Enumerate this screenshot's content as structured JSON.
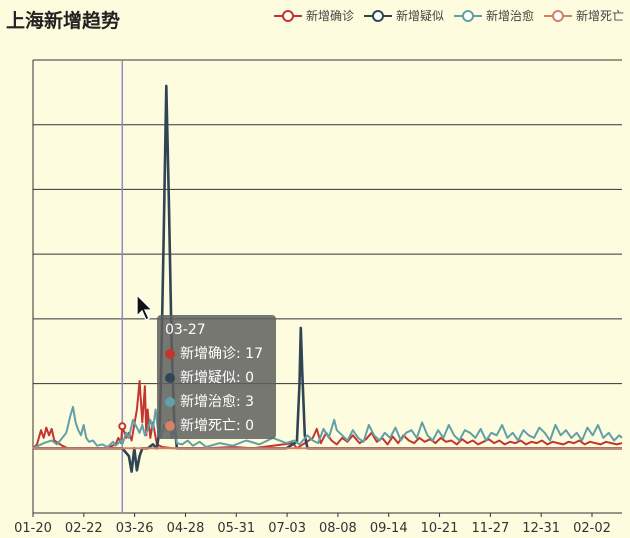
{
  "title": "上海新增趋势",
  "legend": [
    {
      "name": "新增确诊",
      "color": "#c23531"
    },
    {
      "name": "新增疑似",
      "color": "#2f4554"
    },
    {
      "name": "新增治愈",
      "color": "#61a0a8"
    },
    {
      "name": "新增死亡",
      "color": "#d48265"
    }
  ],
  "tooltip": {
    "date": "03-27",
    "rows": [
      {
        "label": "新增确诊: 17",
        "color": "#c23531"
      },
      {
        "label": "新增疑似: 0",
        "color": "#2f4554"
      },
      {
        "label": "新增治愈: 3",
        "color": "#61a0a8"
      },
      {
        "label": "新增死亡: 0",
        "color": "#d48265"
      }
    ]
  },
  "chart_data": {
    "type": "line",
    "title": "上海新增趋势",
    "x_ticks": [
      "01-20",
      "02-22",
      "03-26",
      "04-28",
      "05-31",
      "07-03",
      "08-08",
      "09-14",
      "10-21",
      "11-27",
      "12-31",
      "02-02"
    ],
    "ylim": [
      -50,
      300
    ],
    "grid": true,
    "legend_position": "top-right",
    "highlighted_x": "03-27",
    "series": [
      {
        "name": "新增确诊",
        "color": "#c23531",
        "points": [
          [
            0,
            0
          ],
          [
            3,
            3
          ],
          [
            6,
            14
          ],
          [
            8,
            8
          ],
          [
            10,
            16
          ],
          [
            12,
            10
          ],
          [
            14,
            15
          ],
          [
            16,
            6
          ],
          [
            19,
            4
          ],
          [
            22,
            2
          ],
          [
            26,
            0
          ],
          [
            35,
            0
          ],
          [
            55,
            0
          ],
          [
            62,
            3
          ],
          [
            64,
            8
          ],
          [
            66,
            4
          ],
          [
            67,
            17
          ],
          [
            70,
            8
          ],
          [
            72,
            12
          ],
          [
            74,
            6
          ],
          [
            78,
            30
          ],
          [
            80,
            52
          ],
          [
            82,
            20
          ],
          [
            84,
            48
          ],
          [
            85,
            10
          ],
          [
            86,
            30
          ],
          [
            88,
            8
          ],
          [
            90,
            20
          ],
          [
            93,
            3
          ],
          [
            97,
            1
          ],
          [
            105,
            0
          ],
          [
            130,
            0
          ],
          [
            150,
            1
          ],
          [
            165,
            0
          ],
          [
            180,
            2
          ],
          [
            195,
            4
          ],
          [
            198,
            0
          ],
          [
            210,
            8
          ],
          [
            213,
            15
          ],
          [
            216,
            4
          ],
          [
            220,
            12
          ],
          [
            224,
            6
          ],
          [
            228,
            3
          ],
          [
            232,
            8
          ],
          [
            236,
            5
          ],
          [
            240,
            10
          ],
          [
            245,
            4
          ],
          [
            250,
            7
          ],
          [
            254,
            12
          ],
          [
            258,
            5
          ],
          [
            262,
            8
          ],
          [
            266,
            3
          ],
          [
            270,
            9
          ],
          [
            274,
            4
          ],
          [
            278,
            10
          ],
          [
            282,
            6
          ],
          [
            286,
            4
          ],
          [
            290,
            8
          ],
          [
            294,
            5
          ],
          [
            298,
            7
          ],
          [
            302,
            4
          ],
          [
            306,
            8
          ],
          [
            310,
            5
          ],
          [
            314,
            6
          ],
          [
            318,
            3
          ],
          [
            322,
            7
          ],
          [
            326,
            4
          ],
          [
            330,
            6
          ],
          [
            334,
            3
          ],
          [
            338,
            5
          ],
          [
            342,
            7
          ],
          [
            346,
            4
          ],
          [
            350,
            6
          ],
          [
            354,
            3
          ],
          [
            358,
            5
          ],
          [
            362,
            4
          ],
          [
            366,
            6
          ],
          [
            370,
            3
          ],
          [
            374,
            5
          ],
          [
            378,
            4
          ],
          [
            382,
            6
          ],
          [
            386,
            3
          ],
          [
            390,
            5
          ],
          [
            394,
            4
          ],
          [
            398,
            3
          ],
          [
            402,
            5
          ],
          [
            406,
            4
          ],
          [
            410,
            6
          ],
          [
            414,
            3
          ],
          [
            418,
            5
          ],
          [
            422,
            4
          ],
          [
            426,
            3
          ],
          [
            430,
            5
          ],
          [
            434,
            4
          ],
          [
            438,
            3
          ],
          [
            442,
            4
          ]
        ]
      },
      {
        "name": "新增疑似",
        "color": "#2f4554",
        "points": [
          [
            0,
            0
          ],
          [
            60,
            0
          ],
          [
            64,
            0
          ],
          [
            67,
            0
          ],
          [
            72,
            -6
          ],
          [
            74,
            -18
          ],
          [
            76,
            0
          ],
          [
            78,
            -17
          ],
          [
            80,
            -6
          ],
          [
            82,
            0
          ],
          [
            86,
            0
          ],
          [
            90,
            3
          ],
          [
            93,
            0
          ],
          [
            95,
            15
          ],
          [
            96,
            50
          ],
          [
            98,
            160
          ],
          [
            100,
            280
          ],
          [
            102,
            190
          ],
          [
            104,
            80
          ],
          [
            106,
            20
          ],
          [
            108,
            0
          ],
          [
            120,
            0
          ],
          [
            150,
            0
          ],
          [
            190,
            0
          ],
          [
            198,
            5
          ],
          [
            200,
            50
          ],
          [
            201,
            93
          ],
          [
            202,
            60
          ],
          [
            204,
            10
          ],
          [
            206,
            0
          ],
          [
            442,
            0
          ]
        ]
      },
      {
        "name": "新增治愈",
        "color": "#61a0a8",
        "points": [
          [
            0,
            0
          ],
          [
            8,
            4
          ],
          [
            14,
            6
          ],
          [
            18,
            3
          ],
          [
            22,
            8
          ],
          [
            25,
            12
          ],
          [
            28,
            25
          ],
          [
            30,
            32
          ],
          [
            32,
            20
          ],
          [
            34,
            14
          ],
          [
            36,
            10
          ],
          [
            38,
            18
          ],
          [
            40,
            8
          ],
          [
            42,
            5
          ],
          [
            45,
            6
          ],
          [
            48,
            2
          ],
          [
            52,
            3
          ],
          [
            56,
            1
          ],
          [
            60,
            5
          ],
          [
            62,
            2
          ],
          [
            64,
            4
          ],
          [
            66,
            6
          ],
          [
            67,
            3
          ],
          [
            70,
            12
          ],
          [
            72,
            8
          ],
          [
            75,
            22
          ],
          [
            78,
            16
          ],
          [
            80,
            12
          ],
          [
            82,
            18
          ],
          [
            84,
            10
          ],
          [
            86,
            14
          ],
          [
            88,
            22
          ],
          [
            90,
            15
          ],
          [
            92,
            30
          ],
          [
            94,
            12
          ],
          [
            96,
            8
          ],
          [
            98,
            18
          ],
          [
            100,
            14
          ],
          [
            102,
            22
          ],
          [
            104,
            8
          ],
          [
            106,
            16
          ],
          [
            108,
            4
          ],
          [
            112,
            3
          ],
          [
            116,
            6
          ],
          [
            120,
            2
          ],
          [
            125,
            5
          ],
          [
            130,
            1
          ],
          [
            140,
            4
          ],
          [
            150,
            2
          ],
          [
            160,
            6
          ],
          [
            170,
            3
          ],
          [
            180,
            8
          ],
          [
            190,
            4
          ],
          [
            196,
            6
          ],
          [
            200,
            3
          ],
          [
            206,
            10
          ],
          [
            210,
            6
          ],
          [
            214,
            4
          ],
          [
            218,
            15
          ],
          [
            222,
            8
          ],
          [
            226,
            22
          ],
          [
            228,
            14
          ],
          [
            232,
            10
          ],
          [
            236,
            6
          ],
          [
            240,
            14
          ],
          [
            244,
            8
          ],
          [
            248,
            5
          ],
          [
            252,
            18
          ],
          [
            256,
            10
          ],
          [
            260,
            6
          ],
          [
            264,
            12
          ],
          [
            268,
            8
          ],
          [
            272,
            16
          ],
          [
            276,
            6
          ],
          [
            280,
            12
          ],
          [
            284,
            14
          ],
          [
            288,
            8
          ],
          [
            292,
            20
          ],
          [
            296,
            10
          ],
          [
            300,
            6
          ],
          [
            304,
            14
          ],
          [
            308,
            8
          ],
          [
            312,
            18
          ],
          [
            316,
            10
          ],
          [
            320,
            6
          ],
          [
            324,
            14
          ],
          [
            328,
            12
          ],
          [
            332,
            8
          ],
          [
            336,
            15
          ],
          [
            340,
            6
          ],
          [
            344,
            12
          ],
          [
            348,
            10
          ],
          [
            352,
            18
          ],
          [
            356,
            8
          ],
          [
            360,
            12
          ],
          [
            364,
            6
          ],
          [
            368,
            14
          ],
          [
            372,
            10
          ],
          [
            376,
            8
          ],
          [
            380,
            16
          ],
          [
            384,
            12
          ],
          [
            388,
            6
          ],
          [
            392,
            18
          ],
          [
            396,
            10
          ],
          [
            400,
            14
          ],
          [
            404,
            8
          ],
          [
            408,
            12
          ],
          [
            412,
            6
          ],
          [
            416,
            16
          ],
          [
            420,
            10
          ],
          [
            424,
            18
          ],
          [
            428,
            8
          ],
          [
            432,
            12
          ],
          [
            436,
            6
          ],
          [
            440,
            10
          ],
          [
            442,
            8
          ]
        ]
      },
      {
        "name": "新增死亡",
        "color": "#d48265",
        "points": [
          [
            0,
            0
          ],
          [
            442,
            0
          ]
        ]
      }
    ]
  }
}
